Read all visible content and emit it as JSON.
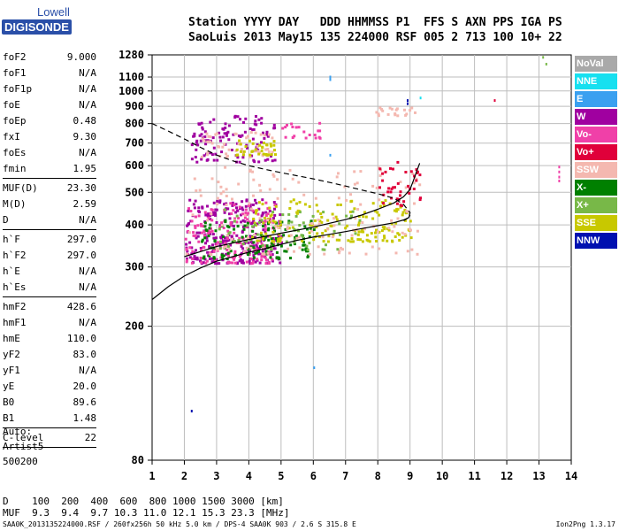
{
  "logo": {
    "line1": "Lowell",
    "line2": "DIGISONDE"
  },
  "header": {
    "line1": "Station YYYY DAY   DDD HHMMSS P1  FFS S AXN PPS IGA PS",
    "line2": "SaoLuis 2013 May15 135 224000 RSF 005 2 713 100 10+ 22"
  },
  "params": {
    "group1": [
      {
        "name": "foF2",
        "value": "9.000"
      },
      {
        "name": "foF1",
        "value": "N/A"
      },
      {
        "name": "foF1p",
        "value": "N/A"
      },
      {
        "name": "foE",
        "value": "N/A"
      },
      {
        "name": "foEp",
        "value": "0.48"
      },
      {
        "name": "fxI",
        "value": "9.30"
      },
      {
        "name": "foEs",
        "value": "N/A"
      },
      {
        "name": "fmin",
        "value": "1.95"
      }
    ],
    "group2": [
      {
        "name": "MUF(D)",
        "value": "23.30"
      },
      {
        "name": "M(D)",
        "value": "2.59"
      },
      {
        "name": "D",
        "value": "N/A"
      }
    ],
    "group3": [
      {
        "name": "h`F",
        "value": "297.0"
      },
      {
        "name": "h`F2",
        "value": "297.0"
      },
      {
        "name": "h`E",
        "value": "N/A"
      },
      {
        "name": "h`Es",
        "value": "N/A"
      }
    ],
    "group4": [
      {
        "name": "hmF2",
        "value": "428.6"
      },
      {
        "name": "hmF1",
        "value": "N/A"
      },
      {
        "name": "hmE",
        "value": "110.0"
      },
      {
        "name": "yF2",
        "value": "83.0"
      },
      {
        "name": "yF1",
        "value": "N/A"
      },
      {
        "name": "yE",
        "value": "20.0"
      },
      {
        "name": "B0",
        "value": "89.6"
      },
      {
        "name": "B1",
        "value": "1.48"
      }
    ],
    "group5": [
      {
        "name": "C-level",
        "value": "22"
      }
    ]
  },
  "auto": {
    "line1": "Auto:",
    "line2": "Artist5",
    "line3": "500200"
  },
  "dmuf": {
    "line1": "D    100  200  400  600  800 1000 1500 3000 [km]",
    "line2": "MUF  9.3  9.4  9.7 10.3 11.0 12.1 15.3 23.3 [MHz]"
  },
  "footer": {
    "text": "SAA0K_2013135224000.RSF / 260fx256h 50 kHz 5.0 km / DPS-4 SAA0K 903 / 2.6 S 315.8 E",
    "version": "Ion2Png 1.3.17"
  },
  "legend": [
    {
      "label": "NoVal",
      "color": "#a9a9a9"
    },
    {
      "label": "NNE",
      "color": "#17e0f0"
    },
    {
      "label": "E",
      "color": "#3aa0f0"
    },
    {
      "label": "W",
      "color": "#a000a0"
    },
    {
      "label": "Vo-",
      "color": "#f040a8"
    },
    {
      "label": "Vo+",
      "color": "#e0003a"
    },
    {
      "label": "SSW",
      "color": "#f4b8b0"
    },
    {
      "label": "X-",
      "color": "#008000"
    },
    {
      "label": "X+",
      "color": "#78b848"
    },
    {
      "label": "SSE",
      "color": "#c8c800"
    },
    {
      "label": "NNW",
      "color": "#0010b0"
    }
  ],
  "chart_data": {
    "type": "scatter",
    "title": "",
    "xlabel": "",
    "ylabel": "",
    "xlim": [
      1,
      14
    ],
    "ylim": [
      80,
      1280
    ],
    "y_scale": "log",
    "x_ticks": [
      1,
      2,
      3,
      4,
      5,
      6,
      7,
      8,
      9,
      10,
      11,
      12,
      13,
      14
    ],
    "y_ticks": [
      80,
      200,
      300,
      400,
      500,
      600,
      700,
      800,
      900,
      1000,
      1100,
      1280
    ],
    "grid": true,
    "legend_position": "right",
    "clusters": [
      {
        "mode": "W",
        "x": [
          2.0,
          5.0
        ],
        "y": [
          310,
          480
        ],
        "n": 260
      },
      {
        "mode": "Vo-",
        "x": [
          2.0,
          4.8
        ],
        "y": [
          310,
          470
        ],
        "n": 160
      },
      {
        "mode": "X-",
        "x": [
          2.5,
          6.0
        ],
        "y": [
          320,
          420
        ],
        "n": 120
      },
      {
        "mode": "SSE",
        "x": [
          4.0,
          9.0
        ],
        "y": [
          360,
          480
        ],
        "n": 170
      },
      {
        "mode": "SSW",
        "x": [
          2.0,
          9.3
        ],
        "y": [
          330,
          600
        ],
        "n": 150
      },
      {
        "mode": "X+",
        "x": [
          3.0,
          7.5
        ],
        "y": [
          340,
          450
        ],
        "n": 60
      },
      {
        "mode": "Vo+",
        "x": [
          8.0,
          9.3
        ],
        "y": [
          460,
          620
        ],
        "n": 40
      },
      {
        "mode": "W",
        "x": [
          2.2,
          4.8
        ],
        "y": [
          620,
          850
        ],
        "n": 110
      },
      {
        "mode": "SSW",
        "x": [
          2.5,
          4.8
        ],
        "y": [
          640,
          760
        ],
        "n": 50
      },
      {
        "mode": "SSE",
        "x": [
          3.5,
          4.8
        ],
        "y": [
          650,
          720
        ],
        "n": 35
      },
      {
        "mode": "Vo-",
        "x": [
          5.0,
          6.2
        ],
        "y": [
          730,
          810
        ],
        "n": 20
      },
      {
        "mode": "SSW",
        "x": [
          7.8,
          9.2
        ],
        "y": [
          850,
          900
        ],
        "n": 20
      }
    ],
    "isolated_points": [
      {
        "mode": "E",
        "x": 6.5,
        "y": 1110
      },
      {
        "mode": "E",
        "x": 6.5,
        "y": 1100
      },
      {
        "mode": "E",
        "x": 6.5,
        "y": 1090
      },
      {
        "mode": "E",
        "x": 6.5,
        "y": 650
      },
      {
        "mode": "E",
        "x": 6.0,
        "y": 152
      },
      {
        "mode": "NNW",
        "x": 2.2,
        "y": 113
      },
      {
        "mode": "Vo+",
        "x": 11.6,
        "y": 945
      },
      {
        "mode": "Vo-",
        "x": 13.6,
        "y": 600
      },
      {
        "mode": "Vo-",
        "x": 13.6,
        "y": 580
      },
      {
        "mode": "Vo-",
        "x": 13.6,
        "y": 560
      },
      {
        "mode": "Vo-",
        "x": 13.6,
        "y": 545
      },
      {
        "mode": "X+",
        "x": 13.1,
        "y": 1270
      },
      {
        "mode": "X+",
        "x": 13.2,
        "y": 1212
      },
      {
        "mode": "NNE",
        "x": 9.3,
        "y": 962
      },
      {
        "mode": "NNW",
        "x": 8.9,
        "y": 945
      },
      {
        "mode": "NNW",
        "x": 8.9,
        "y": 925
      }
    ],
    "profile_curve": {
      "x": [
        1.0,
        1.5,
        2.0,
        2.5,
        3.0,
        3.5,
        4.0,
        4.5,
        5.0,
        5.5,
        6.0,
        6.5,
        7.0,
        7.5,
        8.0,
        8.5,
        8.8,
        8.95,
        9.0
      ],
      "y": [
        240,
        262,
        282,
        298,
        312,
        322,
        332,
        340,
        350,
        360,
        368,
        375,
        382,
        390,
        398,
        406,
        414,
        420,
        428
      ]
    },
    "trace_curve": {
      "x": [
        2.0,
        3.0,
        4.0,
        5.0,
        6.0,
        7.0,
        7.5,
        8.0,
        8.5,
        8.8,
        9.0,
        9.1,
        9.2,
        9.3
      ],
      "y": [
        322,
        345,
        362,
        378,
        394,
        415,
        428,
        445,
        465,
        485,
        510,
        540,
        575,
        610
      ]
    },
    "dashed_curve": {
      "x": [
        1.0,
        1.5,
        2.0,
        2.5,
        3.0,
        3.5,
        4.0,
        4.5,
        5.0,
        5.5,
        6.0,
        6.5,
        7.0,
        7.5,
        8.0,
        8.5,
        8.8,
        9.0,
        8.95,
        8.8
      ],
      "y": [
        800,
        760,
        720,
        680,
        645,
        620,
        600,
        585,
        572,
        560,
        548,
        535,
        522,
        508,
        495,
        480,
        460,
        435,
        420,
        412
      ]
    }
  }
}
